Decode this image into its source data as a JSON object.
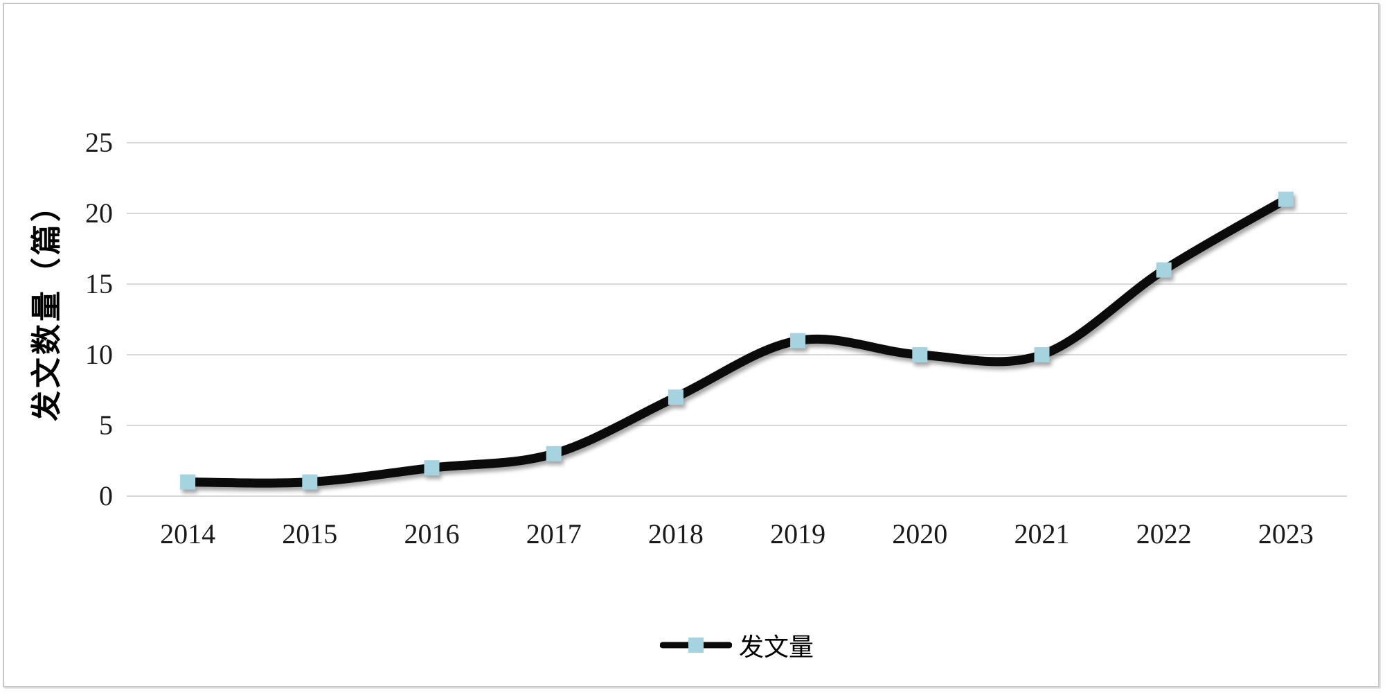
{
  "figure": {
    "background_color": "#ffffff",
    "frame_border_color": "#c6c6c6"
  },
  "chart_data": {
    "type": "line",
    "title": "",
    "categories": [
      "2014",
      "2015",
      "2016",
      "2017",
      "2018",
      "2019",
      "2020",
      "2021",
      "2022",
      "2023"
    ],
    "series": [
      {
        "name": "发文量",
        "values": [
          1,
          1,
          2,
          3,
          7,
          11,
          10,
          10,
          16,
          21
        ]
      }
    ],
    "xlabel": "",
    "ylabel": "发文数量（篇）",
    "ylim": [
      0,
      25
    ],
    "yticks": [
      0,
      5,
      10,
      15,
      20,
      25
    ],
    "grid": "horizontal",
    "smooth_line": true,
    "legend_position": "bottom-center",
    "line_color": "#0b0b0b",
    "marker_shape": "square",
    "marker_color": "#a5d3e0",
    "gridline_color": "#d8d8d8",
    "tick_label_color": "#1a1a1a"
  }
}
